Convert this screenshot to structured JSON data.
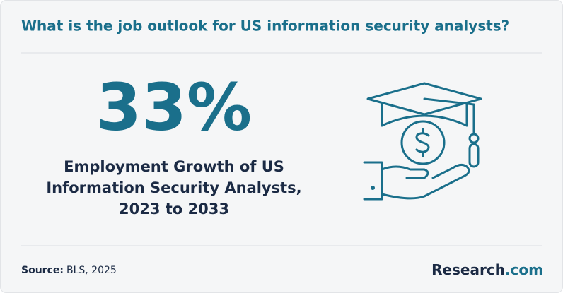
{
  "header": {
    "title": "What is the job outlook for US information security analysts?"
  },
  "stat": {
    "value": "33%",
    "description_lines": [
      "Employment Growth of US",
      "Information Security Analysts,",
      "2023 to 2033"
    ]
  },
  "footer": {
    "source_label": "Source:",
    "source_text": "BLS, 2025",
    "brand_name": "Research",
    "brand_suffix": ".com"
  }
}
